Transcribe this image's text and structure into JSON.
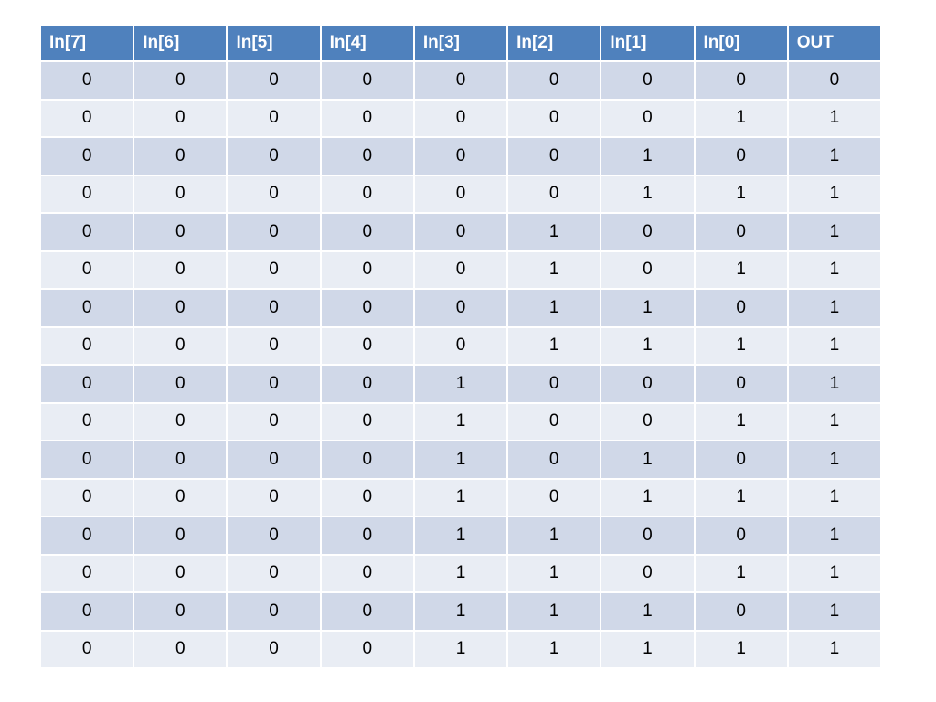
{
  "table": {
    "header": [
      "In[7]",
      "In[6]",
      "In[5]",
      "In[4]",
      "In[3]",
      "In[2]",
      "In[1]",
      "In[0]",
      "OUT"
    ],
    "rows": [
      [
        0,
        0,
        0,
        0,
        0,
        0,
        0,
        0,
        0
      ],
      [
        0,
        0,
        0,
        0,
        0,
        0,
        0,
        1,
        1
      ],
      [
        0,
        0,
        0,
        0,
        0,
        0,
        1,
        0,
        1
      ],
      [
        0,
        0,
        0,
        0,
        0,
        0,
        1,
        1,
        1
      ],
      [
        0,
        0,
        0,
        0,
        0,
        1,
        0,
        0,
        1
      ],
      [
        0,
        0,
        0,
        0,
        0,
        1,
        0,
        1,
        1
      ],
      [
        0,
        0,
        0,
        0,
        0,
        1,
        1,
        0,
        1
      ],
      [
        0,
        0,
        0,
        0,
        0,
        1,
        1,
        1,
        1
      ],
      [
        0,
        0,
        0,
        0,
        1,
        0,
        0,
        0,
        1
      ],
      [
        0,
        0,
        0,
        0,
        1,
        0,
        0,
        1,
        1
      ],
      [
        0,
        0,
        0,
        0,
        1,
        0,
        1,
        0,
        1
      ],
      [
        0,
        0,
        0,
        0,
        1,
        0,
        1,
        1,
        1
      ],
      [
        0,
        0,
        0,
        0,
        1,
        1,
        0,
        0,
        1
      ],
      [
        0,
        0,
        0,
        0,
        1,
        1,
        0,
        1,
        1
      ],
      [
        0,
        0,
        0,
        0,
        1,
        1,
        1,
        0,
        1
      ],
      [
        0,
        0,
        0,
        0,
        1,
        1,
        1,
        1,
        1
      ]
    ]
  }
}
